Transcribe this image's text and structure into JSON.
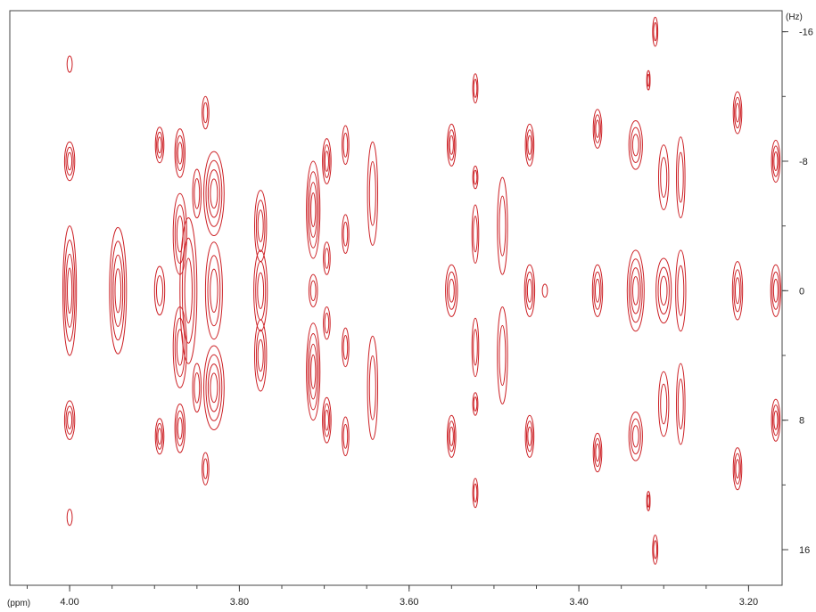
{
  "chart_data": {
    "type": "2d-nmr-contour",
    "x_unit_label": "(ppm)",
    "y_unit_label": "(Hz)",
    "x_ticks": [
      "4.00",
      "3.80",
      "3.60",
      "3.40",
      "3.20"
    ],
    "x_tick_values": [
      4.0,
      3.8,
      3.6,
      3.4,
      3.2
    ],
    "y_ticks": [
      "-16",
      "-8",
      "0",
      "8",
      "16"
    ],
    "y_tick_values": [
      -16,
      -8,
      0,
      8,
      16
    ],
    "xlim": [
      4.0705,
      3.1605
    ],
    "ylim": [
      -17.3,
      18.2
    ],
    "color": "#cc1f24",
    "peaks": [
      {
        "x": 4.0,
        "y": -14,
        "rx": 0.003,
        "ry": 0.5,
        "levels": 1
      },
      {
        "x": 4.0,
        "y": -8,
        "rx": 0.006,
        "ry": 1.2,
        "levels": 3
      },
      {
        "x": 4.0,
        "y": 0,
        "rx": 0.008,
        "ry": 4.0,
        "levels": 4
      },
      {
        "x": 4.0,
        "y": 8,
        "rx": 0.006,
        "ry": 1.2,
        "levels": 3
      },
      {
        "x": 4.0,
        "y": 14,
        "rx": 0.003,
        "ry": 0.5,
        "levels": 1
      },
      {
        "x": 3.943,
        "y": 0,
        "rx": 0.01,
        "ry": 3.9,
        "levels": 4
      },
      {
        "x": 3.894,
        "y": -9,
        "rx": 0.005,
        "ry": 1.1,
        "levels": 3
      },
      {
        "x": 3.894,
        "y": 0,
        "rx": 0.006,
        "ry": 1.5,
        "levels": 2
      },
      {
        "x": 3.894,
        "y": 9,
        "rx": 0.005,
        "ry": 1.1,
        "levels": 3
      },
      {
        "x": 3.87,
        "y": -8.5,
        "rx": 0.006,
        "ry": 1.5,
        "levels": 3
      },
      {
        "x": 3.87,
        "y": -3.5,
        "rx": 0.008,
        "ry": 2.5,
        "levels": 3
      },
      {
        "x": 3.87,
        "y": 3.5,
        "rx": 0.008,
        "ry": 2.5,
        "levels": 3
      },
      {
        "x": 3.87,
        "y": 8.5,
        "rx": 0.006,
        "ry": 1.5,
        "levels": 3
      },
      {
        "x": 3.86,
        "y": 0,
        "rx": 0.01,
        "ry": 4.5,
        "levels": 3
      },
      {
        "x": 3.84,
        "y": -11,
        "rx": 0.004,
        "ry": 1.0,
        "levels": 2
      },
      {
        "x": 3.84,
        "y": 11,
        "rx": 0.004,
        "ry": 1.0,
        "levels": 2
      },
      {
        "x": 3.85,
        "y": -6,
        "rx": 0.005,
        "ry": 1.5,
        "levels": 2
      },
      {
        "x": 3.85,
        "y": 6,
        "rx": 0.005,
        "ry": 1.5,
        "levels": 2
      },
      {
        "x": 3.83,
        "y": -6,
        "rx": 0.012,
        "ry": 2.6,
        "levels": 4
      },
      {
        "x": 3.83,
        "y": 6,
        "rx": 0.012,
        "ry": 2.6,
        "levels": 4
      },
      {
        "x": 3.83,
        "y": 0,
        "rx": 0.01,
        "ry": 3.0,
        "levels": 3
      },
      {
        "x": 3.775,
        "y": -4,
        "rx": 0.007,
        "ry": 2.2,
        "levels": 3
      },
      {
        "x": 3.775,
        "y": 0,
        "rx": 0.008,
        "ry": 2.5,
        "levels": 3
      },
      {
        "x": 3.775,
        "y": 4,
        "rx": 0.007,
        "ry": 2.2,
        "levels": 3
      },
      {
        "x": 3.713,
        "y": -5,
        "rx": 0.008,
        "ry": 3.0,
        "levels": 4
      },
      {
        "x": 3.713,
        "y": 5,
        "rx": 0.008,
        "ry": 3.0,
        "levels": 4
      },
      {
        "x": 3.713,
        "y": 0,
        "rx": 0.005,
        "ry": 1.0,
        "levels": 2
      },
      {
        "x": 3.697,
        "y": -8,
        "rx": 0.005,
        "ry": 1.4,
        "levels": 3
      },
      {
        "x": 3.697,
        "y": 8,
        "rx": 0.005,
        "ry": 1.4,
        "levels": 3
      },
      {
        "x": 3.697,
        "y": -2,
        "rx": 0.004,
        "ry": 1.0,
        "levels": 2
      },
      {
        "x": 3.697,
        "y": 2,
        "rx": 0.004,
        "ry": 1.0,
        "levels": 2
      },
      {
        "x": 3.675,
        "y": -9,
        "rx": 0.004,
        "ry": 1.2,
        "levels": 2
      },
      {
        "x": 3.675,
        "y": -3.5,
        "rx": 0.004,
        "ry": 1.2,
        "levels": 2
      },
      {
        "x": 3.675,
        "y": 3.5,
        "rx": 0.004,
        "ry": 1.2,
        "levels": 2
      },
      {
        "x": 3.675,
        "y": 9,
        "rx": 0.004,
        "ry": 1.2,
        "levels": 2
      },
      {
        "x": 3.643,
        "y": -6,
        "rx": 0.006,
        "ry": 3.2,
        "levels": 2
      },
      {
        "x": 3.643,
        "y": 6,
        "rx": 0.006,
        "ry": 3.2,
        "levels": 2
      },
      {
        "x": 3.55,
        "y": -9,
        "rx": 0.005,
        "ry": 1.3,
        "levels": 3
      },
      {
        "x": 3.55,
        "y": 0,
        "rx": 0.007,
        "ry": 1.6,
        "levels": 3
      },
      {
        "x": 3.55,
        "y": 9,
        "rx": 0.005,
        "ry": 1.3,
        "levels": 3
      },
      {
        "x": 3.522,
        "y": -12.5,
        "rx": 0.003,
        "ry": 0.9,
        "levels": 2
      },
      {
        "x": 3.522,
        "y": -7,
        "rx": 0.003,
        "ry": 0.7,
        "levels": 2
      },
      {
        "x": 3.522,
        "y": -3.5,
        "rx": 0.004,
        "ry": 1.8,
        "levels": 2
      },
      {
        "x": 3.522,
        "y": 3.5,
        "rx": 0.004,
        "ry": 1.8,
        "levels": 2
      },
      {
        "x": 3.522,
        "y": 7,
        "rx": 0.003,
        "ry": 0.7,
        "levels": 2
      },
      {
        "x": 3.522,
        "y": 12.5,
        "rx": 0.003,
        "ry": 0.9,
        "levels": 2
      },
      {
        "x": 3.49,
        "y": -4,
        "rx": 0.006,
        "ry": 3.0,
        "levels": 2
      },
      {
        "x": 3.49,
        "y": 4,
        "rx": 0.006,
        "ry": 3.0,
        "levels": 2
      },
      {
        "x": 3.458,
        "y": -9,
        "rx": 0.005,
        "ry": 1.3,
        "levels": 3
      },
      {
        "x": 3.458,
        "y": 0,
        "rx": 0.006,
        "ry": 1.6,
        "levels": 3
      },
      {
        "x": 3.458,
        "y": 9,
        "rx": 0.005,
        "ry": 1.3,
        "levels": 3
      },
      {
        "x": 3.44,
        "y": 0,
        "rx": 0.003,
        "ry": 0.4,
        "levels": 1
      },
      {
        "x": 3.378,
        "y": -10,
        "rx": 0.005,
        "ry": 1.2,
        "levels": 3
      },
      {
        "x": 3.378,
        "y": 0,
        "rx": 0.006,
        "ry": 1.6,
        "levels": 3
      },
      {
        "x": 3.378,
        "y": 10,
        "rx": 0.005,
        "ry": 1.2,
        "levels": 3
      },
      {
        "x": 3.333,
        "y": -9,
        "rx": 0.008,
        "ry": 1.5,
        "levels": 3
      },
      {
        "x": 3.333,
        "y": 9,
        "rx": 0.008,
        "ry": 1.5,
        "levels": 3
      },
      {
        "x": 3.333,
        "y": 0,
        "rx": 0.01,
        "ry": 2.5,
        "levels": 4
      },
      {
        "x": 3.31,
        "y": -16,
        "rx": 0.003,
        "ry": 0.9,
        "levels": 2
      },
      {
        "x": 3.31,
        "y": 16,
        "rx": 0.003,
        "ry": 0.9,
        "levels": 2
      },
      {
        "x": 3.318,
        "y": -13,
        "rx": 0.002,
        "ry": 0.6,
        "levels": 2
      },
      {
        "x": 3.318,
        "y": 13,
        "rx": 0.002,
        "ry": 0.6,
        "levels": 2
      },
      {
        "x": 3.3,
        "y": 0,
        "rx": 0.009,
        "ry": 2.0,
        "levels": 3
      },
      {
        "x": 3.3,
        "y": -7,
        "rx": 0.006,
        "ry": 2.0,
        "levels": 2
      },
      {
        "x": 3.3,
        "y": 7,
        "rx": 0.006,
        "ry": 2.0,
        "levels": 2
      },
      {
        "x": 3.28,
        "y": -7,
        "rx": 0.005,
        "ry": 2.5,
        "levels": 2
      },
      {
        "x": 3.28,
        "y": 7,
        "rx": 0.005,
        "ry": 2.5,
        "levels": 2
      },
      {
        "x": 3.28,
        "y": 0,
        "rx": 0.006,
        "ry": 2.5,
        "levels": 2
      },
      {
        "x": 3.213,
        "y": -11,
        "rx": 0.005,
        "ry": 1.3,
        "levels": 3
      },
      {
        "x": 3.213,
        "y": 0,
        "rx": 0.006,
        "ry": 1.8,
        "levels": 3
      },
      {
        "x": 3.213,
        "y": 11,
        "rx": 0.005,
        "ry": 1.3,
        "levels": 3
      },
      {
        "x": 3.168,
        "y": -8,
        "rx": 0.005,
        "ry": 1.3,
        "levels": 3
      },
      {
        "x": 3.168,
        "y": 0,
        "rx": 0.006,
        "ry": 1.6,
        "levels": 3
      },
      {
        "x": 3.168,
        "y": 8,
        "rx": 0.005,
        "ry": 1.3,
        "levels": 3
      }
    ]
  }
}
